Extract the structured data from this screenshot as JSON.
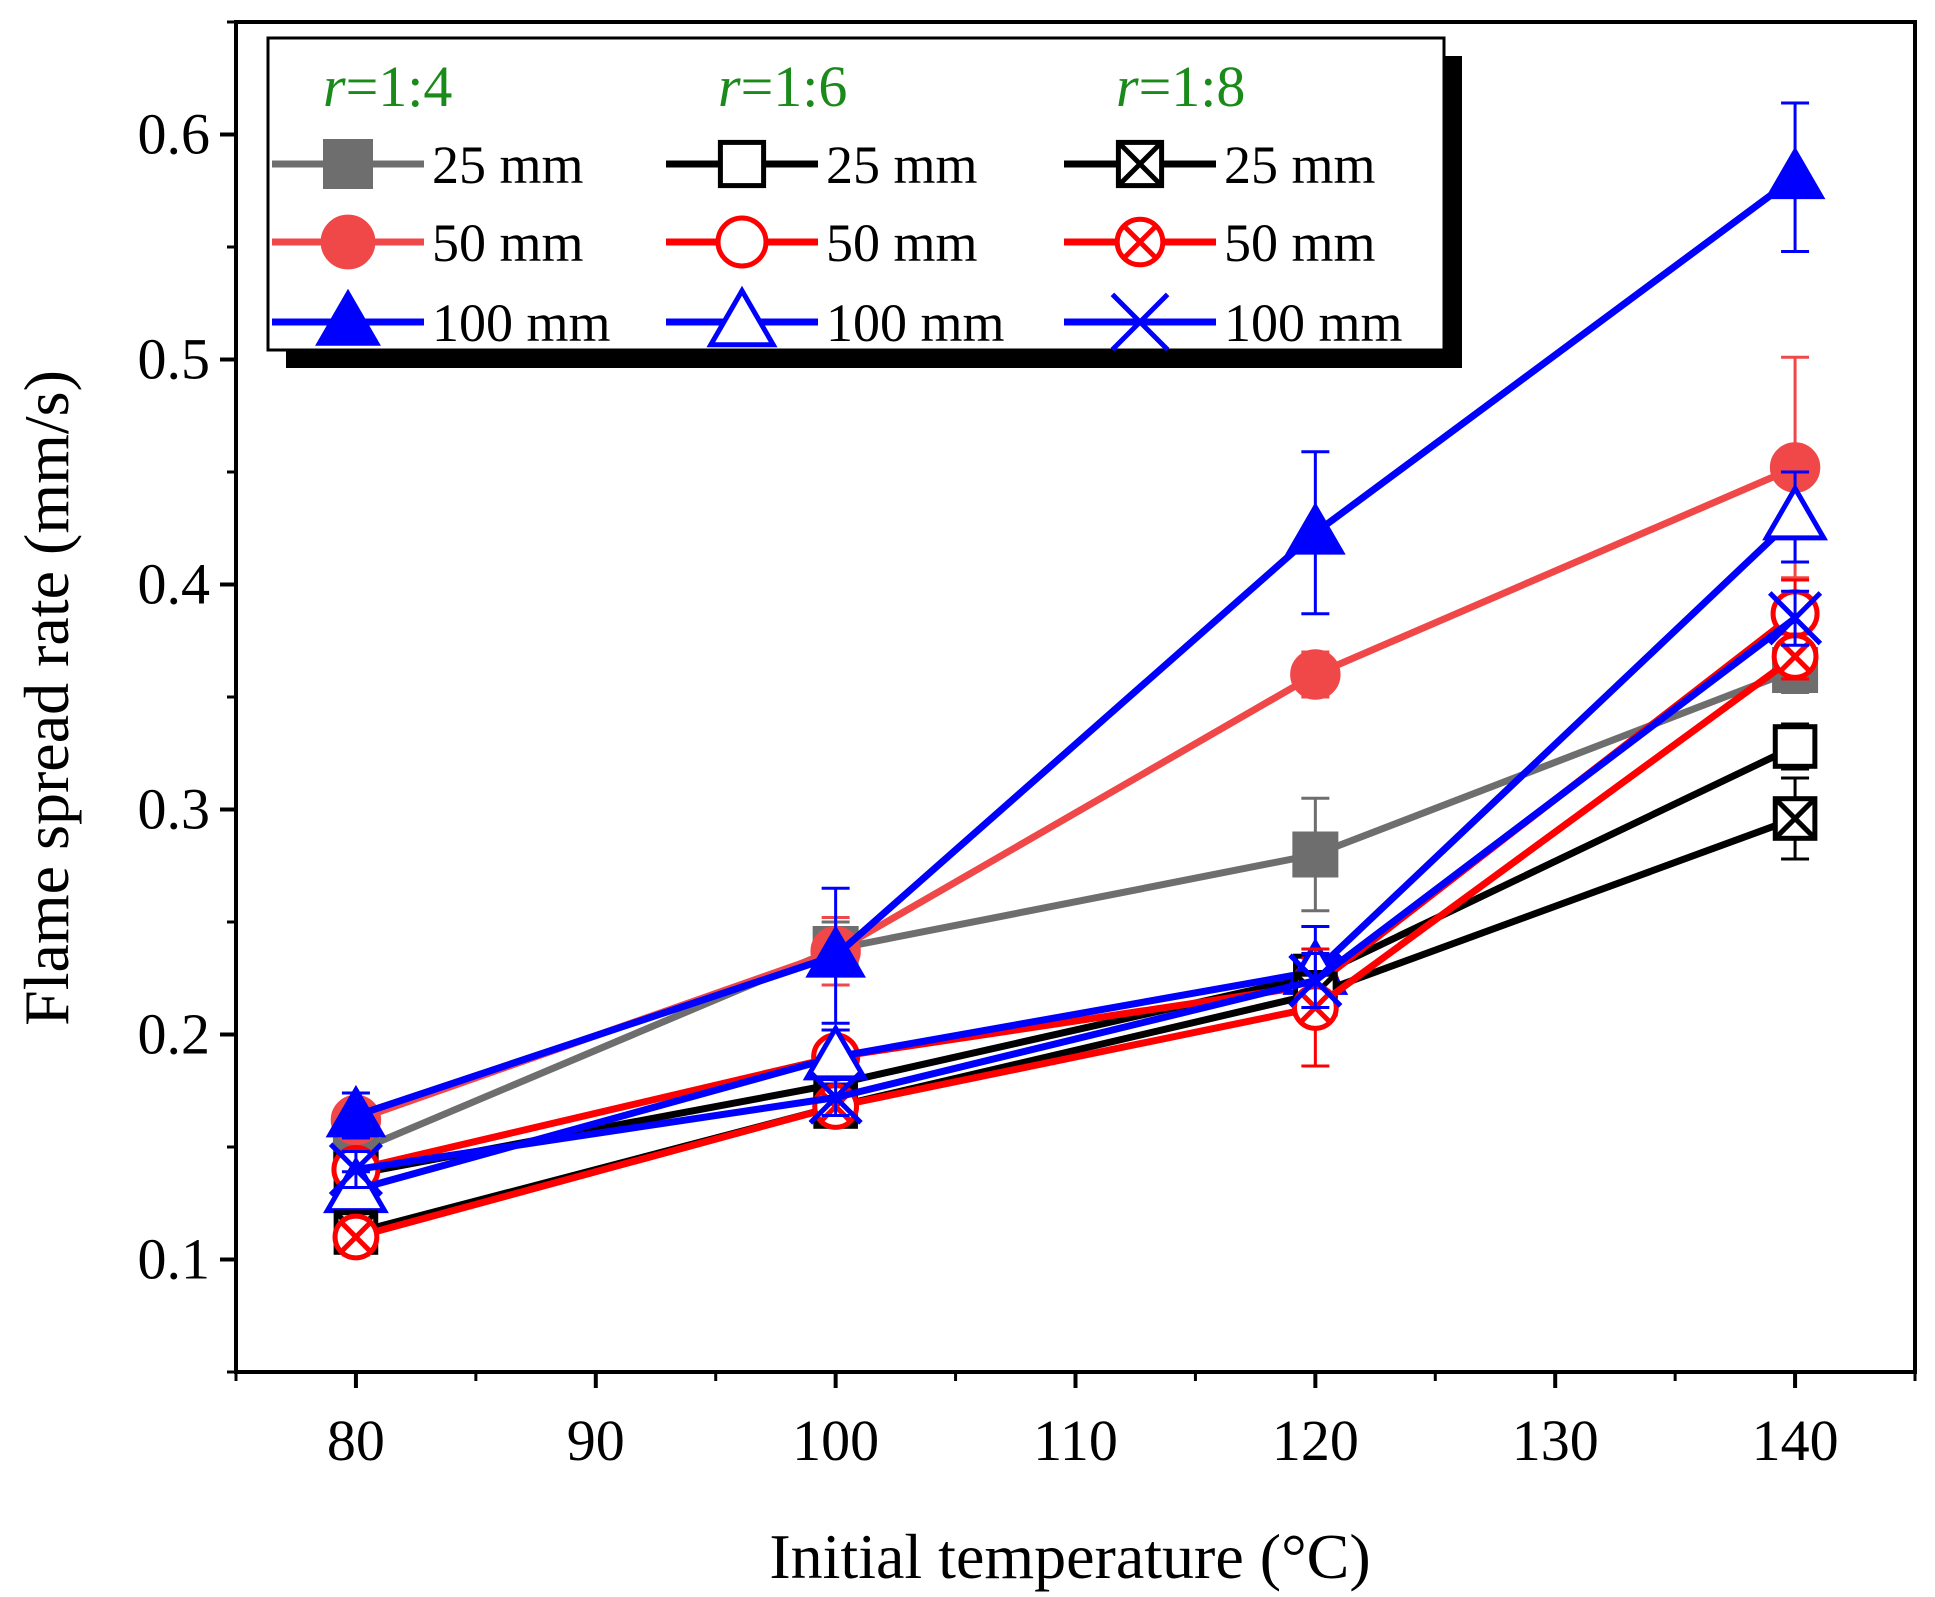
{
  "chart_data": {
    "type": "line",
    "xlabel": "Initial temperature (°C)",
    "ylabel": "Flame spread rate (mm/s)",
    "xlim": [
      75,
      145
    ],
    "ylim": [
      0.05,
      0.65
    ],
    "xticks": [
      80,
      90,
      100,
      110,
      120,
      130,
      140
    ],
    "xtick_labels": [
      "80",
      "90",
      "100",
      "110",
      "120",
      "130",
      "140"
    ],
    "yticks": [
      0.1,
      0.2,
      0.3,
      0.4,
      0.5,
      0.6
    ],
    "ytick_labels": [
      "0.1",
      "0.2",
      "0.3",
      "0.4",
      "0.5",
      "0.6"
    ],
    "x": [
      80,
      100,
      120,
      140
    ],
    "legend": {
      "placement": "top-left",
      "groups": [
        {
          "prefix": "r",
          "ratio": "=1:4"
        },
        {
          "prefix": "r",
          "ratio": "=1:6"
        },
        {
          "prefix": "r",
          "ratio": "=1:8"
        }
      ]
    },
    "series": [
      {
        "name": "25 mm",
        "group": "r=1:4",
        "label": "25 mm",
        "color": "#6e6e6e",
        "marker": "square-filled",
        "values": [
          0.148,
          0.238,
          0.28,
          0.362
        ],
        "errors": [
          0.008,
          0.012,
          0.025,
          0.01
        ]
      },
      {
        "name": "50 mm",
        "group": "r=1:4",
        "label": "50 mm",
        "color": "#f04848",
        "marker": "circle-filled",
        "values": [
          0.162,
          0.237,
          0.36,
          0.452
        ],
        "errors": [
          0.008,
          0.015,
          0.01,
          0.049
        ]
      },
      {
        "name": "100 mm",
        "group": "r=1:4",
        "label": " 100 mm",
        "color": "#0000ff",
        "marker": "triangle-filled",
        "values": [
          0.164,
          0.235,
          0.423,
          0.581
        ],
        "errors": [
          0.01,
          0.03,
          0.036,
          0.033
        ]
      },
      {
        "name": "25 mm",
        "group": "r=1:6",
        "label": "25 mm",
        "color": "#000000",
        "marker": "square-open",
        "values": [
          0.138,
          0.178,
          0.226,
          0.328
        ],
        "errors": [
          0.008,
          0.01,
          0.008,
          0.01
        ]
      },
      {
        "name": "50 mm",
        "group": "r=1:6",
        "label": "50 mm",
        "color": "#ff0000",
        "marker": "circle-open",
        "values": [
          0.14,
          0.19,
          0.222,
          0.387
        ],
        "errors": [
          0.008,
          0.012,
          0.012,
          0.015
        ]
      },
      {
        "name": "100 mm",
        "group": "r=1:6",
        "label": "100 mm",
        "color": "#0000ff",
        "marker": "triangle-open",
        "values": [
          0.131,
          0.19,
          0.228,
          0.43
        ],
        "errors": [
          0.008,
          0.012,
          0.02,
          0.02
        ]
      },
      {
        "name": "25 mm",
        "group": "r=1:8",
        "label": "25 mm",
        "color": "#000000",
        "marker": "square-x",
        "values": [
          0.112,
          0.168,
          0.218,
          0.296
        ],
        "errors": [
          0.008,
          0.008,
          0.01,
          0.018
        ]
      },
      {
        "name": "50 mm",
        "group": "r=1:8",
        "label": "50 mm",
        "color": "#ff0000",
        "marker": "circle-x",
        "values": [
          0.11,
          0.168,
          0.212,
          0.368
        ],
        "errors": [
          0.008,
          0.008,
          0.026,
          0.01
        ]
      },
      {
        "name": "100 mm",
        "group": "r=1:8",
        "label": "100 mm",
        "color": "#0000ff",
        "marker": "x-cross",
        "values": [
          0.14,
          0.172,
          0.224,
          0.385
        ],
        "errors": [
          0.008,
          0.008,
          0.012,
          0.012
        ]
      }
    ]
  }
}
